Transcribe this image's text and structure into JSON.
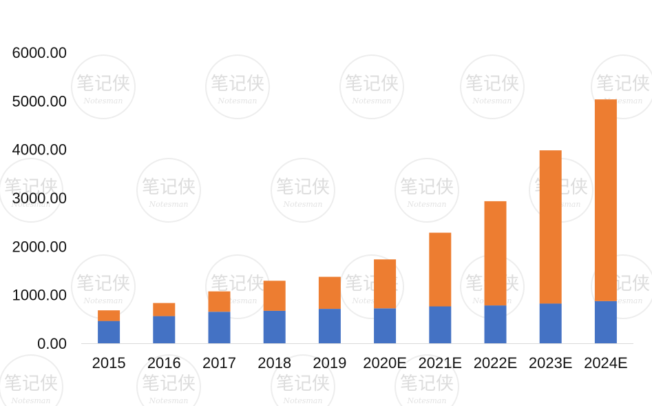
{
  "chart_data": {
    "type": "bar",
    "stacked": true,
    "title": "",
    "xlabel": "",
    "ylabel": "",
    "categories": [
      "2015",
      "2016",
      "2017",
      "2018",
      "2019",
      "2020E",
      "2021E",
      "2022E",
      "2023E",
      "2024E"
    ],
    "series": [
      {
        "values": [
          460,
          560,
          650,
          670,
          710,
          720,
          760,
          780,
          820,
          870
        ],
        "color": "#4472c4"
      },
      {
        "values": [
          220,
          270,
          420,
          620,
          660,
          1010,
          1520,
          2150,
          3160,
          4160
        ],
        "color": "#ed7d31"
      }
    ],
    "ylim": [
      0,
      6000
    ],
    "yticks": [
      "0.00",
      "1000.00",
      "2000.00",
      "3000.00",
      "4000.00",
      "5000.00",
      "6000.00"
    ],
    "grid": false,
    "legend": "none"
  },
  "watermark": {
    "text": "笔记侠",
    "subtext": "Notesman"
  }
}
